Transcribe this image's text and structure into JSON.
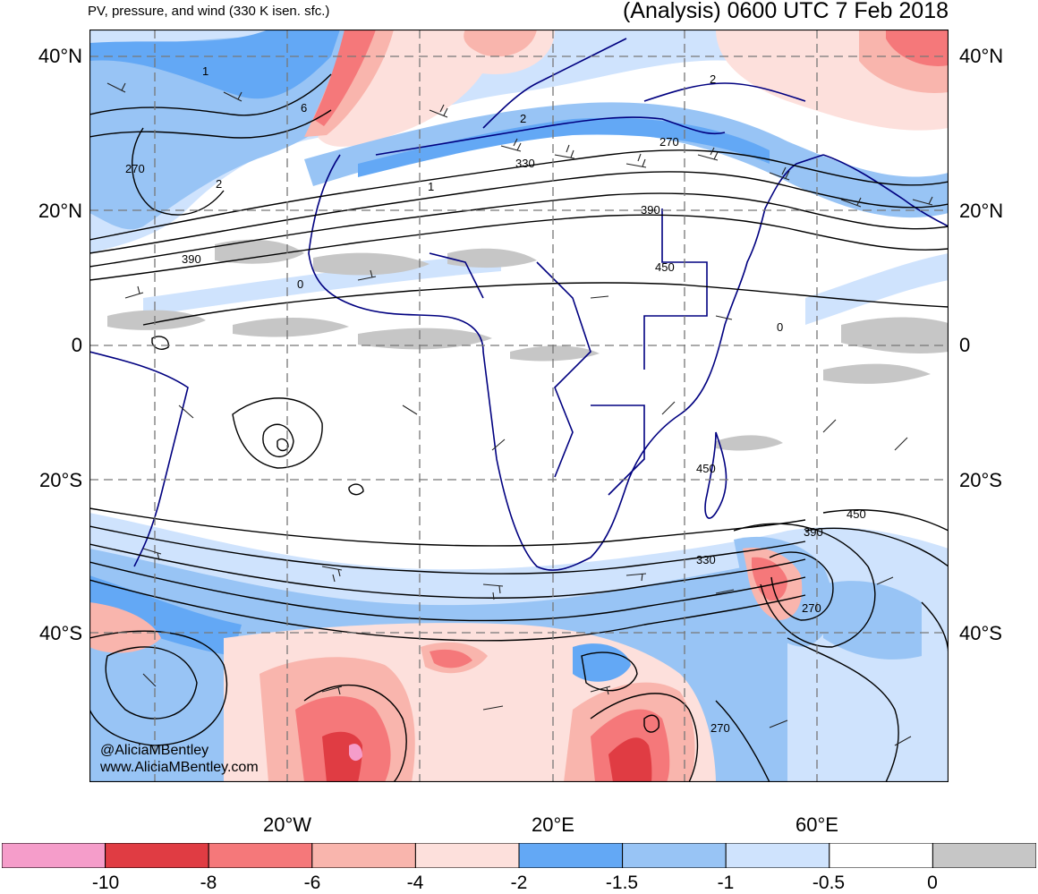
{
  "header": {
    "subtitle": "PV, pressure, and wind (330 K isen. sfc.)",
    "title": "(Analysis) 0600 UTC 7 Feb 2018"
  },
  "map": {
    "lat_labels": [
      "40°N",
      "20°N",
      "0",
      "20°S",
      "40°S"
    ],
    "lon_labels": [
      "20°W",
      "20°E",
      "60°E"
    ],
    "contour_labels": [
      "1",
      "6",
      "2",
      "270",
      "2",
      "2",
      "330",
      "1",
      "270",
      "390",
      "390",
      "0",
      "450",
      "0",
      "450",
      "450",
      "390",
      "330",
      "270",
      "270"
    ],
    "credit_handle": "@AliciaMBentley",
    "credit_url": "www.AliciaMBentley.com"
  },
  "colorbar": {
    "colors": [
      "#f59dca",
      "#e03c43",
      "#f5787a",
      "#f9b5ad",
      "#fde0dc",
      "#63a8f5",
      "#98c4f5",
      "#cfe3fd",
      "#ffffff",
      "#c6c6c6"
    ],
    "labels": [
      "-10",
      "-8",
      "-6",
      "-4",
      "-2",
      "-1.5",
      "-1",
      "-0.5",
      "0"
    ]
  }
}
